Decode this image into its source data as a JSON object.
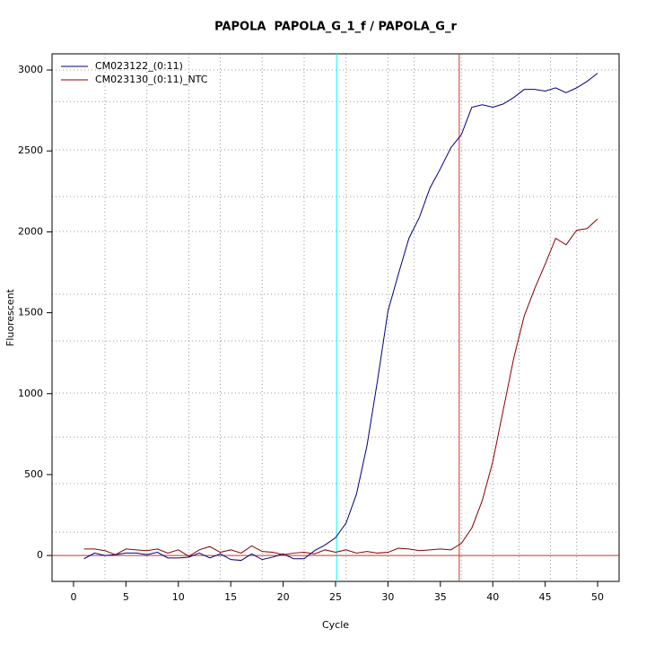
{
  "chart_data": {
    "type": "line",
    "title": "PAPOLA  PAPOLA_G_1_f / PAPOLA_G_r",
    "x_label": "Cycle",
    "y_label": "Fluorescent",
    "x": [
      1,
      2,
      3,
      4,
      5,
      6,
      7,
      8,
      9,
      10,
      11,
      12,
      13,
      14,
      15,
      16,
      17,
      18,
      19,
      20,
      21,
      22,
      23,
      24,
      25,
      26,
      27,
      28,
      29,
      30,
      31,
      32,
      33,
      34,
      35,
      36,
      37,
      38,
      39,
      40,
      41,
      42,
      43,
      44,
      45,
      46,
      47,
      48,
      49,
      50
    ],
    "series": [
      {
        "name": "CM023122_(0:11)",
        "color": "#000080",
        "values": [
          -20,
          15,
          0,
          5,
          15,
          15,
          5,
          20,
          -15,
          -15,
          -10,
          15,
          -15,
          10,
          -25,
          -30,
          10,
          -25,
          -10,
          10,
          -20,
          -20,
          30,
          65,
          110,
          200,
          380,
          680,
          1080,
          1510,
          1740,
          1960,
          2090,
          2270,
          2390,
          2520,
          2600,
          2770,
          2785,
          2770,
          2790,
          2830,
          2880,
          2880,
          2870,
          2890,
          2860,
          2890,
          2930,
          2980
        ]
      },
      {
        "name": "CM023130_(0:11)_NTC",
        "color": "#8b0000",
        "values": [
          40,
          40,
          30,
          5,
          40,
          35,
          30,
          40,
          15,
          35,
          -5,
          35,
          55,
          20,
          35,
          15,
          60,
          25,
          20,
          5,
          15,
          20,
          10,
          35,
          20,
          35,
          15,
          25,
          15,
          20,
          45,
          40,
          30,
          35,
          40,
          35,
          75,
          170,
          340,
          580,
          900,
          1220,
          1480,
          1650,
          1800,
          1960,
          1920,
          2010,
          2020,
          2080
        ]
      }
    ],
    "xlim": [
      -2.05,
      52.05
    ],
    "ylim": [
      -160,
      3100
    ],
    "xticks": [
      0,
      5,
      10,
      15,
      20,
      25,
      30,
      35,
      40,
      45,
      50
    ],
    "yticks": [
      0,
      500,
      1000,
      1500,
      2000,
      2500,
      3000
    ],
    "vgrid": [
      3,
      7,
      11,
      14,
      18,
      22,
      26,
      30,
      32.5,
      37,
      40,
      42.5,
      45.5,
      48
    ],
    "hgrid": [
      144,
      444,
      732,
      1004,
      1326,
      1614,
      2002,
      2218,
      2507,
      2805,
      3000
    ],
    "reference_lines": [
      {
        "axis": "x",
        "value": 25.1,
        "color": "#00ffff"
      },
      {
        "axis": "x",
        "value": 36.8,
        "color": "#c0392b"
      },
      {
        "axis": "y",
        "value": 0,
        "color": "#c0392b"
      }
    ],
    "legend": "top-left"
  }
}
